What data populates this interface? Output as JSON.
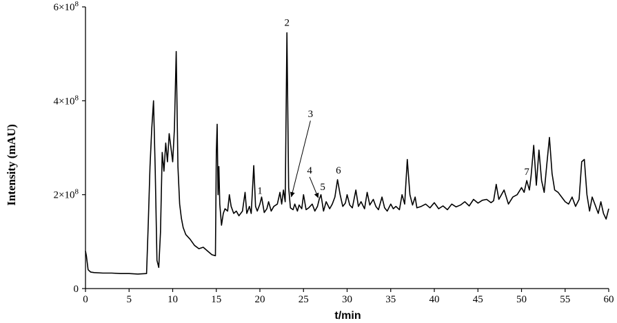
{
  "chart_data": {
    "type": "line",
    "title": "",
    "xlabel": "t/min",
    "ylabel": "Intensity (mAU)",
    "xlim": [
      0,
      60
    ],
    "ylim": [
      0,
      600000000
    ],
    "grid": false,
    "x_ticks": [
      0,
      5,
      10,
      15,
      20,
      25,
      30,
      35,
      40,
      45,
      50,
      55,
      60
    ],
    "x_tick_labels": [
      "0",
      "5",
      "10",
      "15",
      "20",
      "25",
      "30",
      "35",
      "40",
      "45",
      "50",
      "55",
      "60"
    ],
    "y_ticks": [
      0,
      200000000,
      400000000,
      600000000
    ],
    "y_tick_labels": [
      "0",
      "2×10",
      "4×10",
      "6×10"
    ],
    "y_tick_exponents": [
      "",
      "8",
      "8",
      "8"
    ],
    "line_color": "#000000",
    "series": [
      {
        "x": [
          0,
          0.1,
          0.3,
          0.6,
          1,
          2,
          3,
          4,
          5,
          6,
          7,
          7.2,
          7.4,
          7.6,
          7.8,
          8.0,
          8.2,
          8.4,
          8.6,
          8.8,
          9.0,
          9.2,
          9.4,
          9.6,
          9.8,
          10.0,
          10.2,
          10.4,
          10.6,
          10.8,
          11.0,
          11.2,
          11.5,
          12.0,
          12.5,
          13.0,
          13.5,
          14.0,
          14.5,
          14.9,
          15.0,
          15.1,
          15.2,
          15.3,
          15.4,
          15.6,
          15.8,
          16.0,
          16.3,
          16.5,
          16.7,
          17.0,
          17.3,
          17.6,
          18.0,
          18.3,
          18.5,
          18.8,
          19.0,
          19.3,
          19.5,
          19.7,
          20.0,
          20.2,
          20.5,
          20.8,
          21.0,
          21.3,
          21.6,
          22.0,
          22.3,
          22.5,
          22.7,
          22.9,
          23.1,
          23.3,
          23.5,
          23.8,
          24.0,
          24.3,
          24.5,
          24.8,
          25.0,
          25.3,
          25.6,
          26.0,
          26.3,
          26.6,
          26.8,
          27.0,
          27.3,
          27.6,
          28.0,
          28.3,
          28.6,
          28.9,
          29.2,
          29.5,
          29.8,
          30.0,
          30.3,
          30.6,
          31.0,
          31.3,
          31.6,
          32.0,
          32.3,
          32.6,
          33.0,
          33.3,
          33.6,
          34.0,
          34.3,
          34.6,
          35.0,
          35.3,
          35.6,
          36.0,
          36.3,
          36.6,
          36.9,
          37.2,
          37.5,
          37.8,
          38.0,
          38.5,
          39.0,
          39.5,
          40.0,
          40.5,
          41.0,
          41.5,
          42.0,
          42.5,
          43.0,
          43.5,
          44.0,
          44.5,
          45.0,
          45.5,
          46.0,
          46.5,
          46.8,
          47.1,
          47.4,
          47.7,
          48.0,
          48.5,
          49.0,
          49.5,
          50.0,
          50.3,
          50.6,
          50.9,
          51.1,
          51.4,
          51.7,
          52.0,
          52.3,
          52.6,
          52.9,
          53.2,
          53.5,
          53.8,
          54.2,
          54.6,
          55.0,
          55.4,
          55.8,
          56.2,
          56.6,
          56.9,
          57.2,
          57.5,
          57.8,
          58.1,
          58.4,
          58.8,
          59.1,
          59.4,
          59.7,
          60.0
        ],
        "values": [
          80000000,
          70000000,
          40000000,
          35000000,
          34000000,
          33000000,
          33000000,
          32000000,
          32000000,
          31000000,
          32000000,
          140000000,
          260000000,
          340000000,
          400000000,
          250000000,
          60000000,
          45000000,
          120000000,
          290000000,
          250000000,
          310000000,
          270000000,
          330000000,
          300000000,
          270000000,
          340000000,
          505000000,
          260000000,
          180000000,
          150000000,
          130000000,
          115000000,
          105000000,
          92000000,
          85000000,
          88000000,
          80000000,
          72000000,
          70000000,
          290000000,
          350000000,
          200000000,
          260000000,
          180000000,
          135000000,
          160000000,
          170000000,
          165000000,
          200000000,
          175000000,
          160000000,
          165000000,
          155000000,
          165000000,
          205000000,
          160000000,
          175000000,
          160000000,
          262000000,
          175000000,
          165000000,
          180000000,
          195000000,
          162000000,
          170000000,
          185000000,
          165000000,
          175000000,
          180000000,
          205000000,
          180000000,
          210000000,
          185000000,
          545000000,
          215000000,
          172000000,
          168000000,
          180000000,
          165000000,
          178000000,
          170000000,
          200000000,
          168000000,
          172000000,
          180000000,
          165000000,
          175000000,
          190000000,
          200000000,
          165000000,
          185000000,
          170000000,
          180000000,
          195000000,
          232000000,
          200000000,
          175000000,
          182000000,
          200000000,
          178000000,
          172000000,
          210000000,
          175000000,
          185000000,
          170000000,
          205000000,
          178000000,
          190000000,
          175000000,
          168000000,
          195000000,
          172000000,
          165000000,
          180000000,
          170000000,
          175000000,
          168000000,
          200000000,
          180000000,
          275000000,
          200000000,
          178000000,
          195000000,
          172000000,
          175000000,
          180000000,
          172000000,
          183000000,
          170000000,
          176000000,
          168000000,
          180000000,
          174000000,
          178000000,
          185000000,
          176000000,
          190000000,
          182000000,
          188000000,
          190000000,
          183000000,
          187000000,
          222000000,
          190000000,
          200000000,
          210000000,
          180000000,
          195000000,
          200000000,
          215000000,
          205000000,
          230000000,
          210000000,
          240000000,
          305000000,
          220000000,
          295000000,
          230000000,
          205000000,
          265000000,
          322000000,
          245000000,
          210000000,
          205000000,
          195000000,
          185000000,
          180000000,
          195000000,
          175000000,
          190000000,
          270000000,
          275000000,
          200000000,
          165000000,
          195000000,
          180000000,
          160000000,
          185000000,
          160000000,
          148000000,
          170000000
        ]
      }
    ],
    "annotations": [
      {
        "text": "1",
        "x": 20.0,
        "y": 202000000,
        "arrow": false
      },
      {
        "text": "2",
        "x": 23.1,
        "y": 560000000,
        "arrow": false
      },
      {
        "text": "3",
        "x": 25.8,
        "y": 365000000,
        "arrow": true,
        "arrow_to_x": 23.6,
        "arrow_to_y": 195000000
      },
      {
        "text": "4",
        "x": 25.7,
        "y": 245000000,
        "arrow": true,
        "arrow_to_x": 26.7,
        "arrow_to_y": 193000000
      },
      {
        "text": "5",
        "x": 27.2,
        "y": 210000000,
        "arrow": false
      },
      {
        "text": "6",
        "x": 29.0,
        "y": 245000000,
        "arrow": false
      },
      {
        "text": "7",
        "x": 50.6,
        "y": 242000000,
        "arrow": false
      }
    ]
  }
}
